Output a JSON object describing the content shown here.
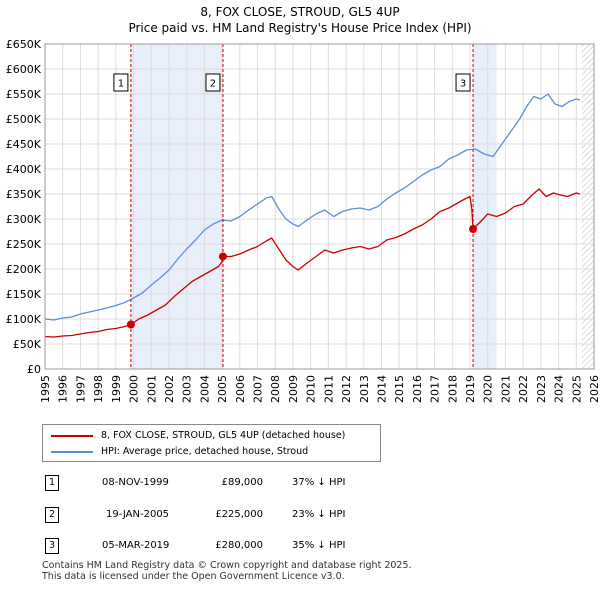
{
  "title_line1": "8, FOX CLOSE, STROUD, GL5 4UP",
  "title_line2": "Price paid vs. HM Land Registry's House Price Index (HPI)",
  "colors": {
    "property": "#cc0000",
    "hpi": "#5b8fd6",
    "shade": "#e8eefa",
    "hatch": "#bbbbbb",
    "marker_line": "#cc0000",
    "grid": "#dddddd"
  },
  "chart_data": {
    "type": "line",
    "title": "8, FOX CLOSE, STROUD, GL5 4UP",
    "subtitle": "Price paid vs. HM Land Registry's House Price Index (HPI)",
    "xlabel": "",
    "ylabel": "",
    "xlim": [
      1995,
      2026
    ],
    "ylim": [
      0,
      650000
    ],
    "x_ticks": [
      "1995",
      "1996",
      "1997",
      "1998",
      "1999",
      "2000",
      "2001",
      "2002",
      "2003",
      "2004",
      "2005",
      "2006",
      "2007",
      "2008",
      "2009",
      "2010",
      "2011",
      "2012",
      "2013",
      "2014",
      "2015",
      "2016",
      "2017",
      "2018",
      "2019",
      "2020",
      "2021",
      "2022",
      "2023",
      "2024",
      "2025",
      "2026"
    ],
    "y_ticks": [
      {
        "value": 0,
        "label": "£0"
      },
      {
        "value": 50000,
        "label": "£50K"
      },
      {
        "value": 100000,
        "label": "£100K"
      },
      {
        "value": 150000,
        "label": "£150K"
      },
      {
        "value": 200000,
        "label": "£200K"
      },
      {
        "value": 250000,
        "label": "£250K"
      },
      {
        "value": 300000,
        "label": "£300K"
      },
      {
        "value": 350000,
        "label": "£350K"
      },
      {
        "value": 400000,
        "label": "£400K"
      },
      {
        "value": 450000,
        "label": "£450K"
      },
      {
        "value": 500000,
        "label": "£500K"
      },
      {
        "value": 550000,
        "label": "£550K"
      },
      {
        "value": 600000,
        "label": "£600K"
      },
      {
        "value": 650000,
        "label": "£650K"
      }
    ],
    "grid": true,
    "shaded_ranges": [
      [
        1999.85,
        2005.05
      ],
      [
        2019.17,
        2020.5
      ]
    ],
    "hatched_from": 2025.3,
    "series": [
      {
        "name": "8, FOX CLOSE, STROUD, GL5 4UP (detached house)",
        "x": [
          1995.0,
          1995.5,
          1996.0,
          1996.5,
          1997.0,
          1997.5,
          1998.0,
          1998.5,
          1999.0,
          1999.5,
          1999.85,
          2000.3,
          2000.8,
          2001.3,
          2001.8,
          2002.3,
          2002.8,
          2003.3,
          2003.8,
          2004.3,
          2004.8,
          2005.0,
          2005.05,
          2005.5,
          2006.0,
          2006.5,
          2007.0,
          2007.5,
          2007.8,
          2008.2,
          2008.6,
          2009.0,
          2009.3,
          2009.8,
          2010.3,
          2010.8,
          2011.3,
          2011.8,
          2012.3,
          2012.8,
          2013.3,
          2013.8,
          2014.3,
          2014.8,
          2015.3,
          2015.8,
          2016.3,
          2016.8,
          2017.3,
          2017.8,
          2018.2,
          2018.6,
          2019.0,
          2019.1,
          2019.17,
          2019.6,
          2020.0,
          2020.5,
          2021.0,
          2021.5,
          2022.0,
          2022.5,
          2022.9,
          2023.3,
          2023.7,
          2024.1,
          2024.5,
          2025.0,
          2025.2
        ],
        "values": [
          65000,
          64000,
          66000,
          67000,
          70000,
          73000,
          75000,
          79000,
          81000,
          85000,
          89000,
          100000,
          108000,
          118000,
          128000,
          145000,
          160000,
          175000,
          185000,
          195000,
          205000,
          215000,
          225000,
          225000,
          230000,
          238000,
          245000,
          256000,
          262000,
          240000,
          218000,
          205000,
          198000,
          212000,
          225000,
          238000,
          232000,
          238000,
          242000,
          245000,
          240000,
          245000,
          258000,
          263000,
          270000,
          280000,
          288000,
          300000,
          315000,
          322000,
          330000,
          338000,
          345000,
          320000,
          280000,
          295000,
          310000,
          305000,
          312000,
          325000,
          330000,
          348000,
          360000,
          345000,
          352000,
          348000,
          345000,
          352000,
          350000
        ]
      },
      {
        "name": "HPI: Average price, detached house, Stroud",
        "x": [
          1995.0,
          1995.5,
          1996.0,
          1996.5,
          1997.0,
          1997.5,
          1998.0,
          1998.5,
          1999.0,
          1999.5,
          2000.0,
          2000.5,
          2001.0,
          2001.5,
          2002.0,
          2002.5,
          2003.0,
          2003.5,
          2004.0,
          2004.5,
          2005.0,
          2005.5,
          2006.0,
          2006.5,
          2007.0,
          2007.5,
          2007.8,
          2008.2,
          2008.6,
          2009.0,
          2009.3,
          2009.8,
          2010.3,
          2010.8,
          2011.3,
          2011.8,
          2012.3,
          2012.8,
          2013.3,
          2013.8,
          2014.3,
          2014.8,
          2015.3,
          2015.8,
          2016.3,
          2016.8,
          2017.3,
          2017.8,
          2018.3,
          2018.8,
          2019.3,
          2019.8,
          2020.3,
          2020.8,
          2021.3,
          2021.8,
          2022.2,
          2022.6,
          2023.0,
          2023.4,
          2023.8,
          2024.2,
          2024.6,
          2025.0,
          2025.2
        ],
        "values": [
          100000,
          98000,
          102000,
          104000,
          110000,
          114000,
          118000,
          122000,
          127000,
          133000,
          142000,
          152000,
          168000,
          182000,
          198000,
          220000,
          240000,
          258000,
          278000,
          290000,
          298000,
          296000,
          305000,
          318000,
          330000,
          342000,
          345000,
          320000,
          300000,
          290000,
          285000,
          298000,
          310000,
          318000,
          305000,
          315000,
          320000,
          322000,
          318000,
          325000,
          340000,
          352000,
          362000,
          375000,
          388000,
          398000,
          405000,
          420000,
          428000,
          438000,
          440000,
          430000,
          425000,
          450000,
          475000,
          500000,
          525000,
          545000,
          540000,
          550000,
          530000,
          525000,
          535000,
          540000,
          538000
        ]
      }
    ],
    "sales": [
      {
        "label": "1",
        "x": 1999.85,
        "price": 89000
      },
      {
        "label": "2",
        "x": 2005.05,
        "price": 225000
      },
      {
        "label": "3",
        "x": 2019.17,
        "price": 280000
      }
    ]
  },
  "legend": {
    "property_label": "8, FOX CLOSE, STROUD, GL5 4UP (detached house)",
    "hpi_label": "HPI: Average price, detached house, Stroud"
  },
  "sales_table": [
    {
      "num": "1",
      "date": "08-NOV-1999",
      "price": "£89,000",
      "hpi": "37% ↓ HPI"
    },
    {
      "num": "2",
      "date": "19-JAN-2005",
      "price": "£225,000",
      "hpi": "23% ↓ HPI"
    },
    {
      "num": "3",
      "date": "05-MAR-2019",
      "price": "£280,000",
      "hpi": "35% ↓ HPI"
    }
  ],
  "footer_line1": "Contains HM Land Registry data © Crown copyright and database right 2025.",
  "footer_line2": "This data is licensed under the Open Government Licence v3.0."
}
